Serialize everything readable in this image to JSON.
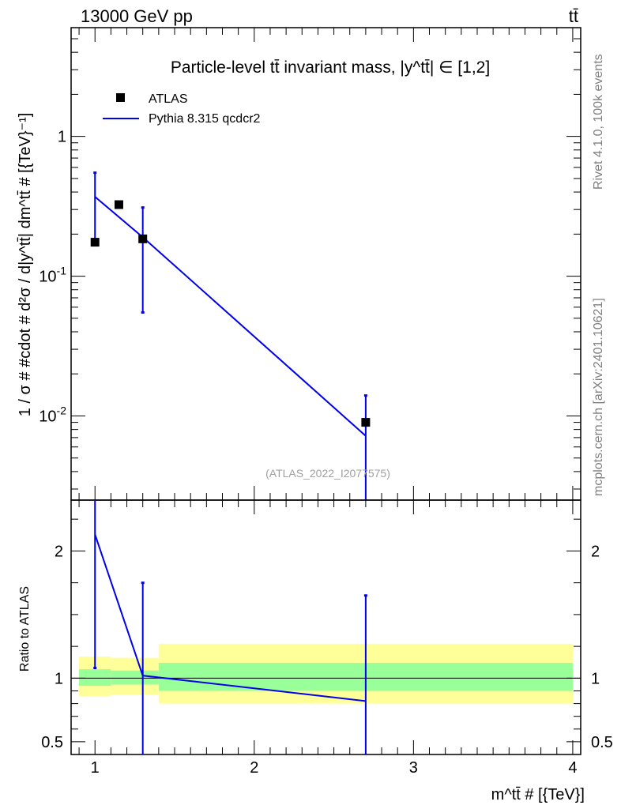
{
  "header": {
    "left": "13000 GeV pp",
    "right": "tt̄"
  },
  "side_labels": {
    "rivet": "Rivet 4.1.0,  100k events",
    "source": "mcplots.cern.ch [arXiv:2401.10621]"
  },
  "colors": {
    "atlas": "#000000",
    "pythia": "#0000ee",
    "band_inner": "#99ff99",
    "band_outer": "#ffff99"
  },
  "chart_data": [
    {
      "type": "scatter",
      "panel": "main",
      "title": "Particle-level tt̄ invariant mass, |y^tt̄| ∈ [1,2]",
      "ylabel": "1 / σ # #cdot # d²σ / d|y^tt̄| dm^tt̄ # [{TeV}⁻¹]",
      "yscale": "log",
      "ylim": [
        0.0025,
        6.0
      ],
      "xlim": [
        0.85,
        4.05
      ],
      "y_tick_labels": [
        "10^-2",
        "10^-1",
        "1"
      ],
      "watermark": "(ATLAS_2022_I2077575)",
      "legend_position": "top-left",
      "series": [
        {
          "name": "ATLAS",
          "style": "markers",
          "x": [
            1.0,
            1.15,
            1.3,
            2.7
          ],
          "y": [
            0.175,
            0.325,
            0.185,
            0.009
          ]
        },
        {
          "name": "Pythia 8.315 qcdcr2",
          "style": "line",
          "x": [
            1.0,
            1.3,
            2.7
          ],
          "y": [
            0.37,
            0.19,
            0.0072
          ],
          "err_low": [
            0.175,
            0.055,
            0.0025
          ],
          "err_high": [
            0.55,
            0.31,
            0.014
          ]
        }
      ]
    },
    {
      "type": "line",
      "panel": "ratio",
      "ylabel": "Ratio to ATLAS",
      "xlabel": "m^tt̄ # [{TeV}]",
      "ylim": [
        0.4,
        2.4
      ],
      "xlim": [
        0.85,
        4.05
      ],
      "x_ticks": [
        1,
        2,
        3,
        4
      ],
      "x_tick_labels": [
        "1",
        "2",
        "3",
        "4"
      ],
      "y_ticks": [
        0.5,
        1,
        2
      ],
      "y_tick_labels": [
        "0.5",
        "1",
        "2"
      ],
      "bands": [
        {
          "x_low": 0.9,
          "x_high": 1.1,
          "inner": [
            0.94,
            1.07
          ],
          "outer": [
            0.86,
            1.17
          ]
        },
        {
          "x_low": 1.1,
          "x_high": 1.4,
          "inner": [
            0.95,
            1.06
          ],
          "outer": [
            0.87,
            1.16
          ]
        },
        {
          "x_low": 1.4,
          "x_high": 4.0,
          "inner": [
            0.9,
            1.12
          ],
          "outer": [
            0.8,
            1.27
          ]
        }
      ],
      "series": [
        {
          "name": "Pythia 8.315 qcdcr2",
          "x": [
            1.0,
            1.3,
            2.7
          ],
          "y": [
            2.13,
            1.02,
            0.82
          ],
          "err_low": [
            1.08,
            0.3,
            0.3
          ],
          "err_high": [
            3.0,
            1.75,
            1.65
          ]
        }
      ]
    }
  ]
}
